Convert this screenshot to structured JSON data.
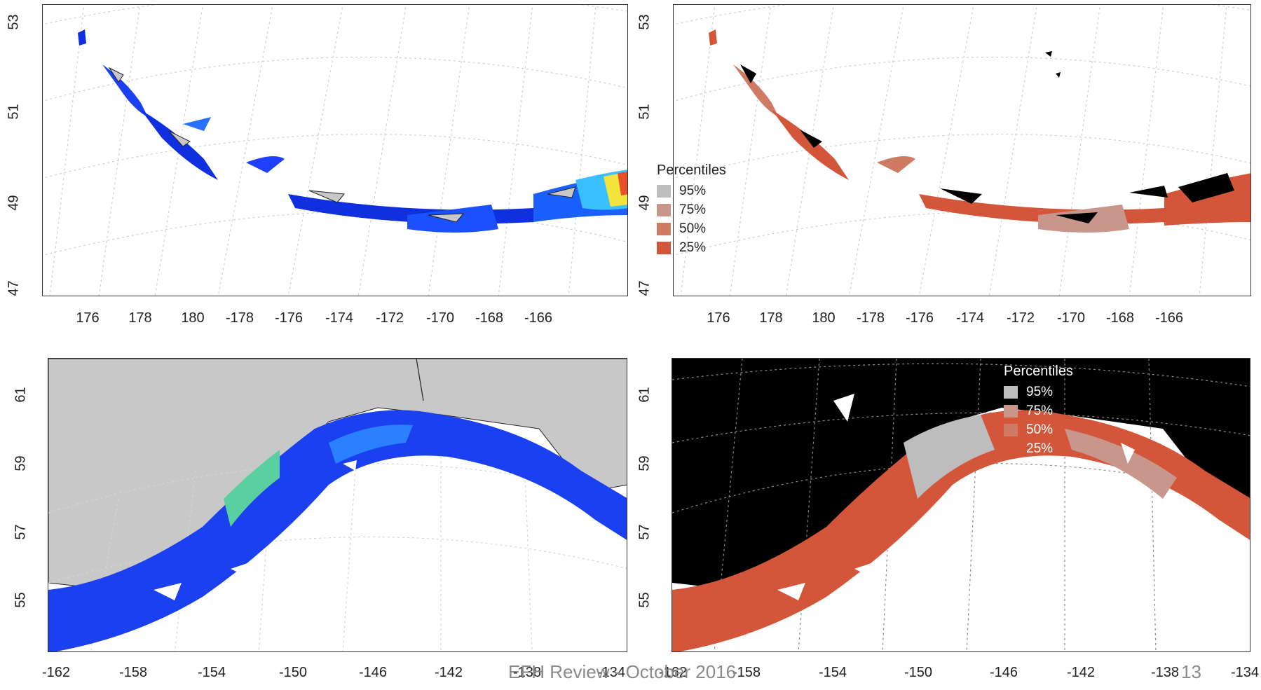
{
  "panels": {
    "top_left": {
      "x_ticks": [
        "176",
        "178",
        "180",
        "-178",
        "-176",
        "-174",
        "-172",
        "-170",
        "-168",
        "-166"
      ],
      "y_ticks": [
        "53",
        "51",
        "49",
        "47"
      ],
      "style": "density-colormap"
    },
    "top_right": {
      "x_ticks": [
        "176",
        "178",
        "180",
        "-178",
        "-176",
        "-174",
        "-172",
        "-170",
        "-168",
        "-166"
      ],
      "y_ticks": [
        "53",
        "51",
        "49",
        "47"
      ],
      "legend": {
        "title": "Percentiles",
        "items": [
          {
            "label": "95%",
            "color": "#bdbdbd"
          },
          {
            "label": "75%",
            "color": "#c9968c"
          },
          {
            "label": "50%",
            "color": "#cf7a62"
          },
          {
            "label": "25%",
            "color": "#d4563a"
          }
        ]
      }
    },
    "bottom_left": {
      "x_ticks": [
        "-162",
        "-158",
        "-154",
        "-150",
        "-146",
        "-142",
        "-138",
        "-134"
      ],
      "y_ticks": [
        "61",
        "59",
        "57",
        "55"
      ],
      "style": "density-colormap"
    },
    "bottom_right": {
      "x_ticks": [
        "-162",
        "-158",
        "-154",
        "-150",
        "-146",
        "-142",
        "-138",
        "-134"
      ],
      "y_ticks": [
        "61",
        "59",
        "57",
        "55"
      ],
      "legend": {
        "title": "Percentiles",
        "items": [
          {
            "label": "95%",
            "color": "#bdbdbd"
          },
          {
            "label": "75%",
            "color": "#c9968c"
          },
          {
            "label": "50%",
            "color": "#cf7a62"
          },
          {
            "label": "25%",
            "color": "#d4563a"
          }
        ]
      }
    }
  },
  "footer": {
    "text": "EFH Review - October 2016",
    "page_number": "13"
  },
  "colors": {
    "land_gray": "#c8c8c8",
    "land_black": "#000000",
    "density_low": "#1030e0",
    "density_mid": "#3ac0ff",
    "density_high": "#f2e43a",
    "density_peak": "#e8502a"
  }
}
